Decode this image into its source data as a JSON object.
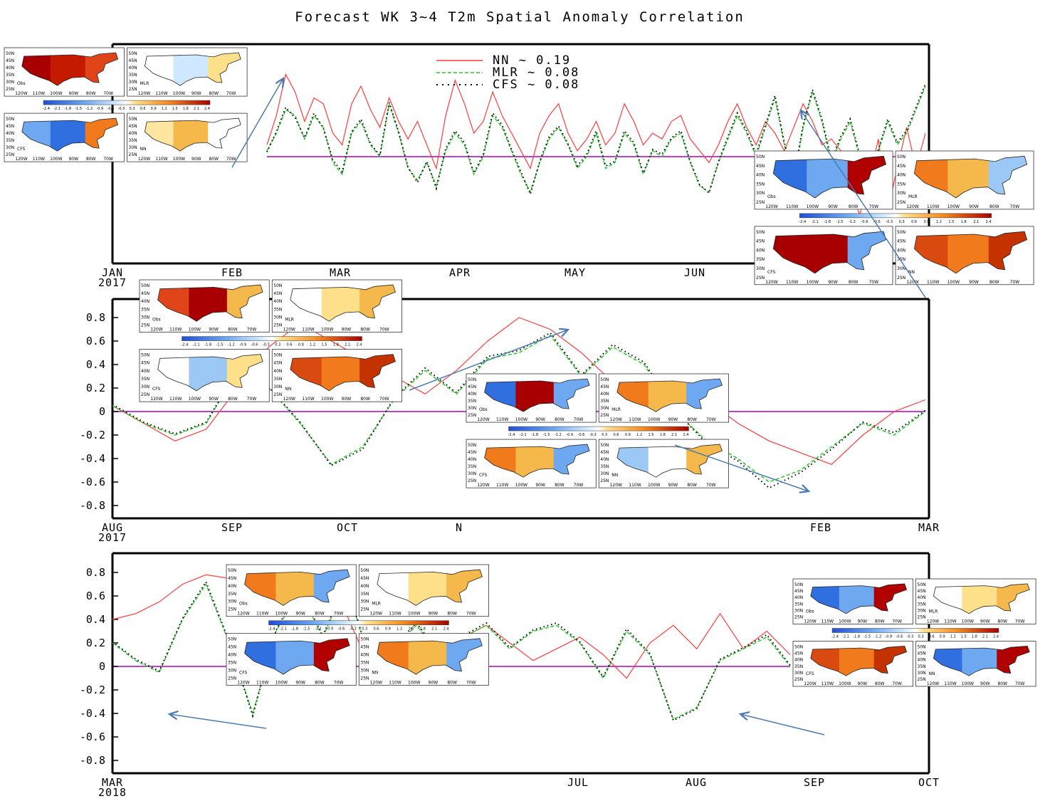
{
  "title": "Forecast WK 3~4 T2m Spatial Anomaly Correlation",
  "legend": [
    {
      "label": "NN ~ 0.19",
      "color": "#ff3b3b",
      "dash": "solid"
    },
    {
      "label": "MLR ~ 0.08",
      "color": "#22cc22",
      "dash": "dashed"
    },
    {
      "label": "CFS ~ 0.08",
      "color": "#000000",
      "dash": "dotted"
    }
  ],
  "colors": {
    "zero_line": "#b000c0",
    "arrow": "#4a7ab5"
  },
  "map_model_labels": [
    "Obs",
    "MLR",
    "CFS",
    "NN"
  ],
  "map_lat_labels": [
    "50N",
    "45N",
    "40N",
    "35N",
    "30N",
    "25N"
  ],
  "map_lon_labels": [
    "120W",
    "110W",
    "100W",
    "90W",
    "80W",
    "70W"
  ],
  "colorbar_labels": [
    "-2.4",
    "-2.1",
    "-1.8",
    "-1.5",
    "-1.2",
    "-0.9",
    "-0.6",
    "-0.3",
    "0.3",
    "0.6",
    "0.9",
    "1.2",
    "1.5",
    "1.8",
    "2.1",
    "2.4"
  ],
  "chart_data": [
    {
      "type": "line",
      "panel": "top",
      "x_start_label": "JAN 2017",
      "months": [
        "JAN",
        "FEB",
        "MAR",
        "APR",
        "MAY",
        "JUN"
      ],
      "year": "2017",
      "ylim": [
        -0.9,
        0.9
      ],
      "series": [
        {
          "name": "NN",
          "values": [
            0.1,
            0.35,
            0.7,
            0.55,
            0.3,
            0.5,
            0.45,
            0.2,
            0.1,
            0.45,
            0.6,
            0.4,
            0.25,
            0.5,
            0.3,
            0.15,
            0.3,
            0.1,
            -0.1,
            0.35,
            0.65,
            0.45,
            0.2,
            0.3,
            0.55,
            0.35,
            0.2,
            0.05,
            -0.1,
            0.2,
            0.35,
            0.45,
            0.2,
            0.05,
            0.15,
            0.3,
            0.1,
            0.2,
            0.45,
            0.3,
            0.1,
            0.2,
            0.15,
            0.3,
            0.35,
            0.15,
            0.05,
            -0.05,
            0.1,
            0.3,
            0.45,
            0.25,
            0.1,
            0.3,
            0.2,
            0.05,
            0.25,
            0.45,
            0.3,
            0.1,
            0.15,
            0.05,
            -0.2,
            -0.5,
            -0.2,
            0.15,
            -0.45,
            -0.1,
            0.25,
            -0.1,
            0.2
          ]
        },
        {
          "name": "MLR",
          "values": [
            0.05,
            0.2,
            0.4,
            0.35,
            0.15,
            0.35,
            0.25,
            -0.05,
            -0.15,
            0.2,
            0.3,
            0.1,
            0.0,
            0.45,
            0.2,
            -0.1,
            -0.2,
            -0.05,
            -0.25,
            0.05,
            0.2,
            0.1,
            -0.15,
            0.0,
            0.35,
            0.25,
            0.05,
            -0.15,
            -0.3,
            -0.05,
            0.15,
            0.25,
            0.1,
            -0.1,
            0.0,
            0.2,
            -0.1,
            -0.05,
            0.2,
            0.1,
            -0.15,
            0.05,
            0.0,
            0.15,
            0.2,
            -0.05,
            -0.25,
            -0.3,
            -0.05,
            0.15,
            0.35,
            0.2,
            0.0,
            0.25,
            0.5,
            0.1,
            -0.2,
            0.25,
            0.55,
            0.3,
            -0.05,
            0.15,
            0.3,
            0.0,
            -0.3,
            0.05,
            0.3,
            0.1,
            0.2,
            0.4,
            0.6
          ]
        },
        {
          "name": "CFS",
          "values": [
            0.04,
            0.21,
            0.42,
            0.33,
            0.16,
            0.37,
            0.24,
            -0.03,
            -0.13,
            0.21,
            0.32,
            0.11,
            0.01,
            0.46,
            0.21,
            -0.09,
            -0.22,
            -0.04,
            -0.27,
            0.07,
            0.22,
            0.12,
            -0.14,
            0.02,
            0.37,
            0.27,
            0.06,
            -0.13,
            -0.32,
            -0.04,
            0.17,
            0.26,
            0.11,
            -0.08,
            0.02,
            0.22,
            -0.08,
            -0.04,
            0.22,
            0.12,
            -0.14,
            0.06,
            0.02,
            0.16,
            0.22,
            -0.04,
            -0.24,
            -0.31,
            -0.04,
            0.17,
            0.37,
            0.22,
            0.02,
            0.27,
            0.52,
            0.12,
            -0.18,
            0.27,
            0.57,
            0.32,
            -0.03,
            0.17,
            0.32,
            0.02,
            -0.28,
            0.06,
            0.32,
            0.12,
            0.22,
            0.42,
            0.62
          ]
        }
      ]
    },
    {
      "type": "line",
      "panel": "middle",
      "months": [
        "AUG",
        "SEP",
        "OCT",
        "N",
        "FEB",
        "MAR"
      ],
      "year": "2017",
      "yticks": [
        "0.8",
        "0.6",
        "0.4",
        "0.2",
        "0",
        "-0.2",
        "-0.4",
        "-0.6",
        "-0.8"
      ],
      "ylim": [
        -0.9,
        0.9
      ],
      "series": [
        {
          "name": "NN",
          "values": [
            0.05,
            -0.1,
            -0.25,
            -0.15,
            0.2,
            0.55,
            0.75,
            0.6,
            0.45,
            0.3,
            0.15,
            0.35,
            0.6,
            0.8,
            0.7,
            0.5,
            0.25,
            0.1,
            0.3,
            0.1,
            -0.1,
            -0.25,
            -0.35,
            -0.45,
            -0.2,
            0.0,
            0.1
          ]
        },
        {
          "name": "MLR",
          "values": [
            0.05,
            -0.1,
            -0.2,
            -0.1,
            0.35,
            0.2,
            -0.1,
            -0.45,
            -0.3,
            0.1,
            0.35,
            0.15,
            0.45,
            0.5,
            0.65,
            0.3,
            0.55,
            0.4,
            0.0,
            -0.25,
            -0.4,
            -0.6,
            -0.5,
            -0.3,
            -0.1,
            -0.2,
            0.0
          ]
        },
        {
          "name": "CFS",
          "values": [
            0.06,
            -0.09,
            -0.19,
            -0.09,
            0.36,
            0.21,
            -0.09,
            -0.46,
            -0.32,
            0.11,
            0.37,
            0.16,
            0.47,
            0.52,
            0.67,
            0.31,
            0.57,
            0.42,
            0.01,
            -0.27,
            -0.42,
            -0.65,
            -0.52,
            -0.32,
            -0.09,
            -0.18,
            0.01
          ]
        }
      ]
    },
    {
      "type": "line",
      "panel": "bottom",
      "months": [
        "MAR",
        "JUL",
        "AUG",
        "SEP",
        "OCT"
      ],
      "year": "2018",
      "yticks": [
        "0.8",
        "0.6",
        "0.4",
        "0.2",
        "0",
        "-0.2",
        "-0.4",
        "-0.6",
        "-0.8"
      ],
      "ylim": [
        -0.9,
        0.9
      ],
      "series": [
        {
          "name": "NN",
          "values": [
            0.4,
            0.45,
            0.55,
            0.7,
            0.78,
            0.75,
            0.82,
            0.85,
            0.75,
            0.8,
            0.45,
            0.0,
            -0.1,
            0.05,
            0.15,
            0.25,
            0.35,
            0.2,
            0.05,
            0.15,
            0.25,
            0.1,
            -0.1,
            0.2,
            0.35,
            0.15,
            0.45,
            0.15,
            0.3,
            0.1
          ]
        },
        {
          "name": "MLR",
          "values": [
            0.2,
            0.05,
            -0.05,
            0.4,
            0.7,
            0.2,
            -0.4,
            0.3,
            0.65,
            0.25,
            0.7,
            0.05,
            0.15,
            0.35,
            0.1,
            0.25,
            0.35,
            0.15,
            0.3,
            0.35,
            0.2,
            -0.1,
            0.3,
            0.1,
            -0.45,
            -0.35,
            0.05,
            0.15,
            0.25,
            0.0
          ]
        },
        {
          "name": "CFS",
          "values": [
            0.21,
            0.06,
            -0.04,
            0.41,
            0.72,
            0.21,
            -0.42,
            0.31,
            0.67,
            0.26,
            0.72,
            0.06,
            0.16,
            0.37,
            0.11,
            0.26,
            0.37,
            0.16,
            0.31,
            0.37,
            0.21,
            -0.09,
            0.32,
            0.11,
            -0.46,
            -0.36,
            0.06,
            0.16,
            0.27,
            0.01
          ]
        }
      ]
    }
  ],
  "map_groups": [
    {
      "id": "g1",
      "maps": [
        [
          "warm-strong",
          "cool-weak"
        ],
        [
          "cool-warm-south",
          "warm-weak"
        ]
      ]
    },
    {
      "id": "g2",
      "maps": [
        [
          "warm-band",
          "warm-ne-weak"
        ],
        [
          "cool-west",
          "warm-strong-all"
        ]
      ]
    },
    {
      "id": "g3",
      "maps": [
        [
          "cool-west-warm-center",
          "warm-west-cool-east"
        ],
        [
          "warm-west-cool-east",
          "cool-center-warm-east"
        ]
      ]
    },
    {
      "id": "g4",
      "maps": [
        [
          "cool-west-warm-east",
          "warm-west-cool-se"
        ],
        [
          "warm-nw-cool-se",
          "warm-strong-all"
        ]
      ]
    },
    {
      "id": "g5",
      "maps": [
        [
          "warm-west-cool-east",
          "warm-ne-weak"
        ],
        [
          "cool-west-warm-east",
          "warm-west-cool-east"
        ]
      ]
    },
    {
      "id": "g6",
      "maps": [
        [
          "cool-west-warm-east",
          "warm-ne-weak"
        ],
        [
          "warm-strong-all",
          "cool-west-warm-east"
        ]
      ]
    }
  ]
}
